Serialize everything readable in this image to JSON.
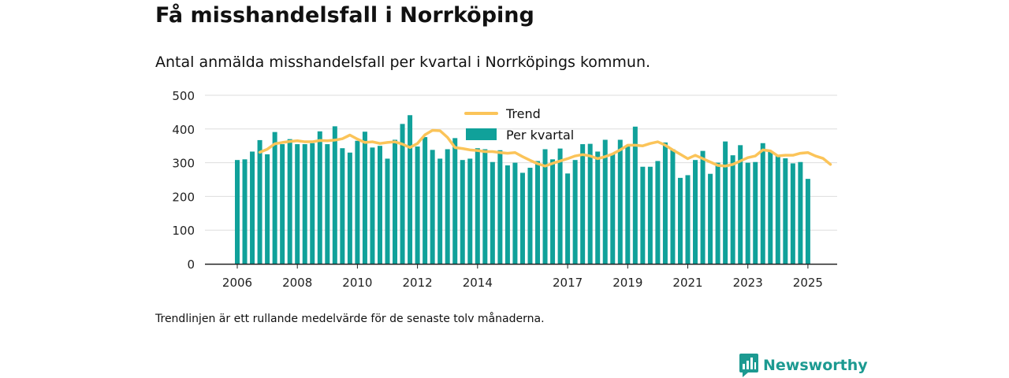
{
  "header": {
    "title": "Få misshandelsfall i Norrköping",
    "subtitle": "Antal anmälda misshandelsfall per kvartal i Norrköpings kommun."
  },
  "footer": {
    "note": "Trendlinjen är ett rullande medelvärde för de senaste tolv månaderna.",
    "brand": "Newsworthy"
  },
  "colors": {
    "bar": "#10a19a",
    "trend": "#fbc459",
    "grid": "#dddddd",
    "axis": "#222222",
    "brand": "#1c9a91"
  },
  "chart_data": {
    "type": "bar",
    "series": [
      {
        "name": "Per kvartal",
        "type": "bar",
        "x_start": "2006 Q1",
        "values": [
          308,
          310,
          333,
          367,
          325,
          391,
          355,
          370,
          355,
          355,
          358,
          393,
          355,
          408,
          343,
          330,
          365,
          392,
          345,
          350,
          312,
          368,
          415,
          441,
          348,
          376,
          338,
          312,
          340,
          373,
          308,
          312,
          343,
          340,
          302,
          337,
          292,
          300,
          270,
          285,
          305,
          340,
          310,
          342,
          268,
          308,
          355,
          356,
          333,
          368,
          325,
          368,
          348,
          407,
          288,
          288,
          305,
          360,
          340,
          255,
          263,
          308,
          335,
          267,
          300,
          363,
          322,
          352,
          300,
          302,
          358,
          335,
          322,
          313,
          298,
          302,
          252
        ]
      },
      {
        "name": "Trend",
        "type": "line",
        "x_start": "2006 Q4",
        "values": [
          331,
          340,
          356,
          360,
          363,
          365,
          362,
          362,
          366,
          365,
          367,
          371,
          382,
          370,
          360,
          362,
          357,
          360,
          362,
          355,
          345,
          357,
          383,
          396,
          395,
          375,
          345,
          342,
          338,
          336,
          333,
          333,
          330,
          328,
          330,
          318,
          307,
          297,
          290,
          298,
          305,
          312,
          320,
          324,
          320,
          312,
          318,
          326,
          338,
          352,
          352,
          350,
          357,
          362,
          352,
          338,
          325,
          312,
          322,
          312,
          302,
          292,
          290,
          295,
          305,
          315,
          320,
          338,
          335,
          320,
          322,
          322,
          328,
          330,
          320,
          313,
          295
        ]
      }
    ],
    "x_ticks": [
      "2006",
      "2008",
      "2010",
      "2012",
      "2014",
      "2017",
      "2019",
      "2021",
      "2023",
      "2025"
    ],
    "y_ticks": [
      0,
      100,
      200,
      300,
      400,
      500
    ],
    "ylim": [
      0,
      500
    ],
    "grid": true,
    "legend": {
      "placement": "top-center",
      "items": [
        {
          "label": "Trend",
          "kind": "line"
        },
        {
          "label": "Per kvartal",
          "kind": "bar"
        }
      ]
    }
  }
}
